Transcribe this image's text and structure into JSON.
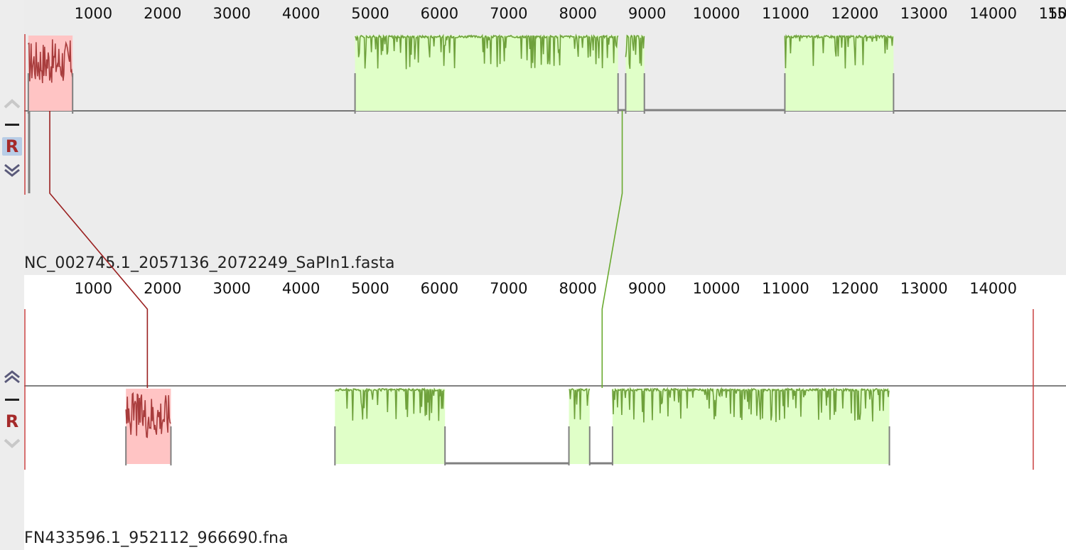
{
  "genomes": [
    {
      "name": "NC_002745.1_2057136_2072249_SaPIn1.fasta",
      "length": 15113,
      "ticks": [
        1000,
        2000,
        3000,
        4000,
        5000,
        6000,
        7000,
        8000,
        9000,
        10000,
        11000,
        12000,
        13000,
        14000,
        15000
      ],
      "partial_tick_label": "150",
      "controls": {
        "up": "chevron-up",
        "minus": "hide",
        "r": "R",
        "down": "chevron-down"
      },
      "blocks": [
        {
          "color": "red",
          "start": 60,
          "end": 700,
          "strand": "+"
        },
        {
          "color": "green",
          "start": 4780,
          "end": 8580,
          "strand": "+"
        },
        {
          "color": "green",
          "start": 8690,
          "end": 8960,
          "strand": "+"
        },
        {
          "color": "green",
          "start": 10990,
          "end": 12560,
          "strand": "+"
        }
      ],
      "gaps": [
        [
          8580,
          8690
        ],
        [
          8960,
          10990
        ]
      ]
    },
    {
      "name": "FN433596.1_952112_966690.fna",
      "length": 14578,
      "ticks": [
        1000,
        2000,
        3000,
        4000,
        5000,
        6000,
        7000,
        8000,
        9000,
        10000,
        11000,
        12000,
        13000,
        14000
      ],
      "controls": {
        "up": "chevron-up",
        "minus": "hide",
        "r": "R",
        "down": "chevron-down"
      },
      "blocks": [
        {
          "color": "red",
          "start": 1470,
          "end": 2120,
          "strand": "-"
        },
        {
          "color": "green",
          "start": 4490,
          "end": 6080,
          "strand": "-"
        },
        {
          "color": "green",
          "start": 7870,
          "end": 8170,
          "strand": "-"
        },
        {
          "color": "green",
          "start": 8500,
          "end": 12500,
          "strand": "-"
        }
      ],
      "gaps": [
        [
          6080,
          7870
        ],
        [
          8170,
          8500
        ]
      ]
    }
  ],
  "connections": [
    {
      "color": "red",
      "top_pos": 370,
      "bottom_pos": 1780
    },
    {
      "color": "green",
      "top_pos": 8640,
      "bottom_pos": 8350
    }
  ],
  "colors": {
    "red_fill": "#ffc4c4",
    "red_line": "#a83c3c",
    "green_fill": "#e0ffc8",
    "green_line": "#6fa13c",
    "gap_line": "#808080",
    "end_marker": "#c84040",
    "red_connector": "#9a2020",
    "green_connector": "#6aaa30",
    "r_button": "#a52a2a"
  }
}
